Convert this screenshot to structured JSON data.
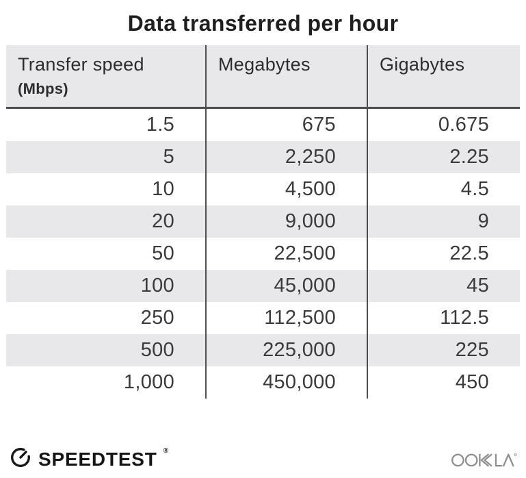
{
  "title": "Data transferred per hour",
  "table": {
    "columns": [
      {
        "label": "Transfer speed",
        "sublabel": "(Mbps)"
      },
      {
        "label": "Megabytes"
      },
      {
        "label": "Gigabytes"
      }
    ],
    "rows": [
      [
        "1.5",
        "675",
        "0.675"
      ],
      [
        "5",
        "2,250",
        "2.25"
      ],
      [
        "10",
        "4,500",
        "4.5"
      ],
      [
        "20",
        "9,000",
        "9"
      ],
      [
        "50",
        "22,500",
        "22.5"
      ],
      [
        "100",
        "45,000",
        "45"
      ],
      [
        "250",
        "112,500",
        "112.5"
      ],
      [
        "500",
        "225,000",
        "225"
      ],
      [
        "1,000",
        "450,000",
        "450"
      ]
    ]
  },
  "chart_data": {
    "type": "table",
    "title": "Data transferred per hour",
    "columns": [
      "Transfer speed (Mbps)",
      "Megabytes",
      "Gigabytes"
    ],
    "rows": [
      [
        1.5,
        675,
        0.675
      ],
      [
        5,
        2250,
        2.25
      ],
      [
        10,
        4500,
        4.5
      ],
      [
        20,
        9000,
        9
      ],
      [
        50,
        22500,
        22.5
      ],
      [
        100,
        45000,
        45
      ],
      [
        250,
        112500,
        112.5
      ],
      [
        500,
        225000,
        225
      ],
      [
        1000,
        450000,
        450
      ]
    ],
    "layout_hints": {
      "alternating_row_shading": true,
      "column_alignment": [
        "right",
        "right",
        "right"
      ]
    }
  },
  "footer": {
    "speedtest_label": "SPEEDTEST",
    "speedtest_reg": "®",
    "ookla_label": "OOKLA"
  },
  "colors": {
    "row_alt": "#e8e8eb",
    "divider_line": "#4d4e52",
    "title_text": "#1f1f21",
    "body_text": "#3a3a3c",
    "brand_black": "#161616",
    "ookla_gray": "#8d8d8f"
  }
}
